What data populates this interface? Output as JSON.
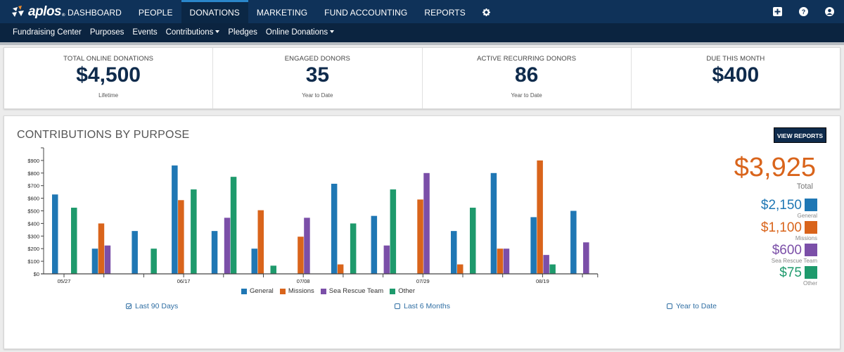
{
  "brand": {
    "name": "aplos",
    "reg": "®"
  },
  "nav": {
    "items": [
      {
        "label": "DASHBOARD"
      },
      {
        "label": "PEOPLE"
      },
      {
        "label": "DONATIONS"
      },
      {
        "label": "MARKETING"
      },
      {
        "label": "FUND ACCOUNTING"
      },
      {
        "label": "REPORTS"
      }
    ],
    "active": "DONATIONS",
    "settings_icon": "gear-icon",
    "right_icons": [
      "plus-square-icon",
      "help-circle-icon",
      "user-circle-icon"
    ]
  },
  "subnav": {
    "items": [
      {
        "label": "Fundraising Center"
      },
      {
        "label": "Purposes"
      },
      {
        "label": "Events"
      },
      {
        "label": "Contributions"
      },
      {
        "label": "Pledges"
      },
      {
        "label": "Online Donations"
      }
    ]
  },
  "stats": [
    {
      "label": "TOTAL ONLINE DONATIONS",
      "value": "$4,500",
      "sub": "Lifetime"
    },
    {
      "label": "ENGAGED DONORS",
      "value": "35",
      "sub": "Year to Date"
    },
    {
      "label": "ACTIVE RECURRING DONORS",
      "value": "86",
      "sub": "Year to Date"
    },
    {
      "label": "DUE THIS MONTH",
      "value": "$400",
      "sub": ""
    }
  ],
  "panel": {
    "title": "CONTRIBUTIONS BY PURPOSE",
    "view_reports": "VIEW REPORTS",
    "total": "$3,925",
    "total_label": "Total",
    "breakdown": [
      {
        "amount": "$2,150",
        "name": "General",
        "color": "#1f77b4"
      },
      {
        "amount": "$1,100",
        "name": "Missions",
        "color": "#d9641b"
      },
      {
        "amount": "$600",
        "name": "Sea Rescue Team",
        "color": "#7b4fa8"
      },
      {
        "amount": "$75",
        "name": "Other",
        "color": "#1e9a6c"
      }
    ],
    "ranges": [
      {
        "label": "Last 90 Days",
        "checked": true
      },
      {
        "label": "Last 6 Months",
        "checked": false
      },
      {
        "label": "Year to Date",
        "checked": false
      }
    ]
  },
  "chart_data": {
    "type": "bar",
    "title": "CONTRIBUTIONS BY PURPOSE",
    "xlabel": "",
    "ylabel": "",
    "ylim": [
      0,
      1000
    ],
    "yticks": [
      0,
      100,
      200,
      300,
      400,
      500,
      600,
      700,
      800,
      900
    ],
    "ytick_labels": [
      "$0",
      "$100",
      "$200",
      "$300",
      "$400",
      "$500",
      "$600",
      "$700",
      "$800",
      "$900"
    ],
    "categories": [
      "05/27",
      "",
      "",
      "06/17",
      "",
      "",
      "07/08",
      "",
      "",
      "07/29",
      "",
      "",
      "08/19",
      ""
    ],
    "legend_position": "bottom",
    "series": [
      {
        "name": "General",
        "color": "#1f77b4",
        "values": [
          630,
          200,
          340,
          860,
          340,
          200,
          0,
          715,
          460,
          0,
          340,
          800,
          450,
          500
        ]
      },
      {
        "name": "Missions",
        "color": "#d9641b",
        "values": [
          0,
          400,
          0,
          585,
          0,
          505,
          295,
          75,
          0,
          590,
          75,
          200,
          900,
          0
        ]
      },
      {
        "name": "Sea Rescue Team",
        "color": "#7b4fa8",
        "values": [
          0,
          225,
          0,
          0,
          445,
          0,
          445,
          0,
          225,
          800,
          0,
          200,
          150,
          250
        ]
      },
      {
        "name": "Other",
        "color": "#1e9a6c",
        "values": [
          525,
          0,
          200,
          670,
          770,
          65,
          0,
          400,
          670,
          0,
          525,
          0,
          75,
          0
        ]
      }
    ]
  }
}
